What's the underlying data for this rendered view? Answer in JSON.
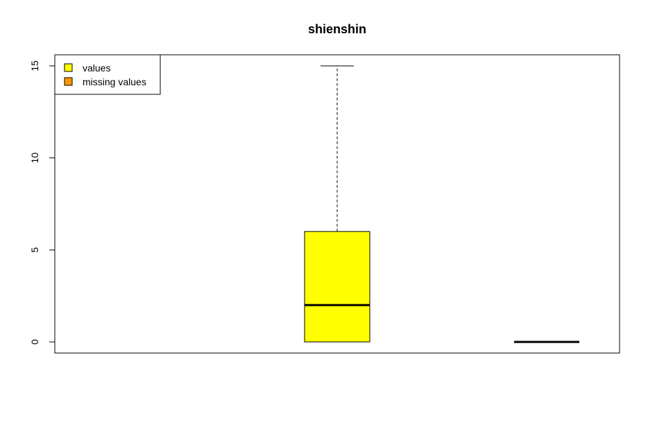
{
  "chart_data": {
    "type": "boxplot",
    "title": "shienshin",
    "xlabel": "",
    "ylabel": "",
    "ylim": [
      0,
      15
    ],
    "yticks": [
      0,
      5,
      10,
      15
    ],
    "legend": {
      "position": "top-left",
      "entries": [
        {
          "label": "values",
          "color": "#ffff00"
        },
        {
          "label": "missing values",
          "color": "#ff9900"
        }
      ]
    },
    "series": [
      {
        "name": "values",
        "color": "#ffff00",
        "min": 0,
        "q1": 0,
        "median": 2,
        "q3": 6,
        "max": 15
      },
      {
        "name": "missing values",
        "color": "#ff9900",
        "min": 0,
        "q1": 0,
        "median": 0,
        "q3": 0,
        "max": 0
      }
    ]
  }
}
